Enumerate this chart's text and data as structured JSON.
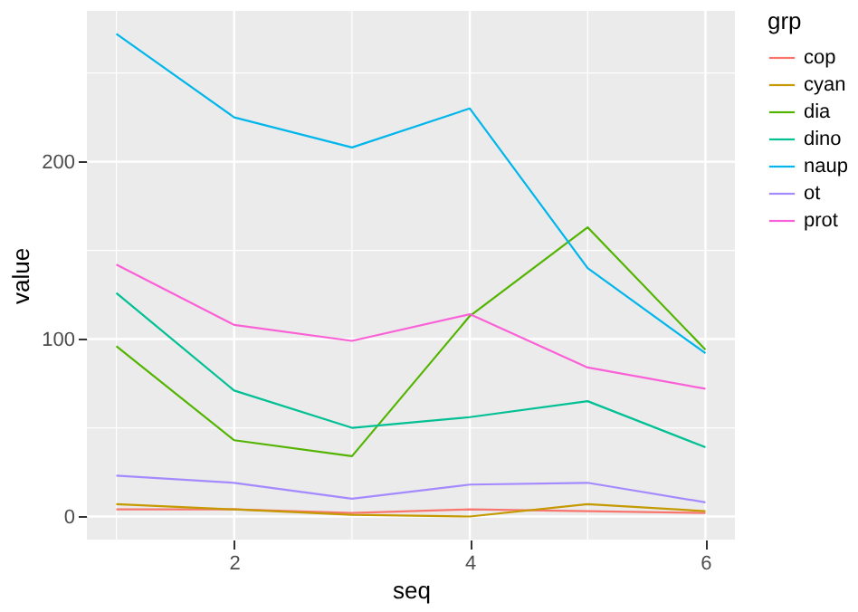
{
  "chart_data": {
    "type": "line",
    "xlabel": "seq",
    "ylabel": "value",
    "legend_title": "grp",
    "legend": "right",
    "grid": true,
    "x": [
      1,
      2,
      3,
      4,
      5,
      6
    ],
    "xlim": [
      0.75,
      6.25
    ],
    "xticks": [
      {
        "value": 1,
        "label": null
      },
      2,
      {
        "value": 3,
        "label": null
      },
      4,
      {
        "value": 5,
        "label": null
      },
      6
    ],
    "ylim": [
      -13,
      285
    ],
    "yticks": [
      0,
      {
        "value": 50,
        "label": null
      },
      100,
      {
        "value": 150,
        "label": null
      },
      200,
      {
        "value": 250,
        "label": null
      }
    ],
    "series": [
      {
        "name": "cop",
        "color": "#F8766D",
        "values": [
          4,
          4,
          2,
          4,
          3,
          2
        ]
      },
      {
        "name": "cyan",
        "color": "#C49A00",
        "values": [
          7,
          4,
          1,
          0,
          7,
          3
        ]
      },
      {
        "name": "dia",
        "color": "#53B400",
        "values": [
          96,
          43,
          34,
          113,
          163,
          94
        ]
      },
      {
        "name": "dino",
        "color": "#00C094",
        "values": [
          126,
          71,
          50,
          56,
          65,
          39
        ]
      },
      {
        "name": "naup",
        "color": "#00B6EB",
        "values": [
          272,
          225,
          208,
          230,
          140,
          92
        ]
      },
      {
        "name": "ot",
        "color": "#A58AFF",
        "values": [
          23,
          19,
          10,
          18,
          19,
          8
        ]
      },
      {
        "name": "prot",
        "color": "#FB61D7",
        "values": [
          142,
          108,
          99,
          114,
          84,
          72
        ]
      }
    ]
  }
}
